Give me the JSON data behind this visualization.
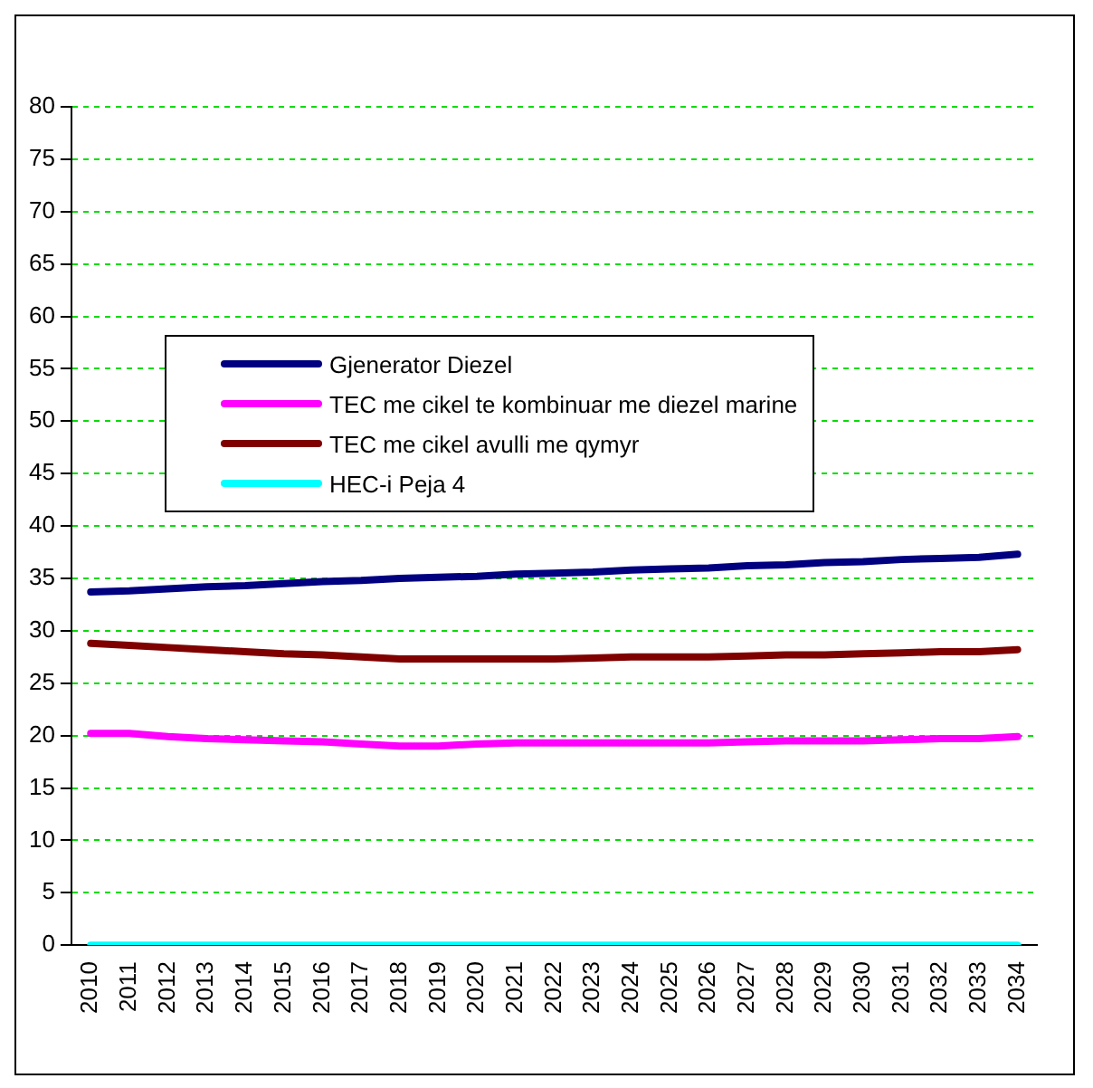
{
  "chart_data": {
    "type": "line",
    "categories": [
      "2010",
      "2011",
      "2012",
      "2013",
      "2014",
      "2015",
      "2016",
      "2017",
      "2018",
      "2019",
      "2020",
      "2021",
      "2022",
      "2023",
      "2024",
      "2025",
      "2026",
      "2027",
      "2028",
      "2029",
      "2030",
      "2031",
      "2032",
      "2033",
      "2034"
    ],
    "series": [
      {
        "name": "Gjenerator Diezel",
        "color": "#000080",
        "values": [
          33.7,
          33.8,
          34.0,
          34.2,
          34.3,
          34.5,
          34.7,
          34.8,
          35.0,
          35.1,
          35.2,
          35.4,
          35.5,
          35.6,
          35.8,
          35.9,
          36.0,
          36.2,
          36.3,
          36.5,
          36.6,
          36.8,
          36.9,
          37.0,
          37.3
        ]
      },
      {
        "name": "TEC me cikel te kombinuar me diezel marine",
        "color": "#ff00ff",
        "values": [
          20.2,
          20.2,
          19.9,
          19.7,
          19.6,
          19.5,
          19.4,
          19.2,
          19.0,
          19.0,
          19.2,
          19.3,
          19.3,
          19.3,
          19.3,
          19.3,
          19.3,
          19.4,
          19.5,
          19.5,
          19.5,
          19.6,
          19.7,
          19.7,
          19.9
        ]
      },
      {
        "name": "TEC me cikel avulli me qymyr",
        "color": "#800000",
        "values": [
          28.8,
          28.6,
          28.4,
          28.2,
          28.0,
          27.8,
          27.7,
          27.5,
          27.3,
          27.3,
          27.3,
          27.3,
          27.3,
          27.4,
          27.5,
          27.5,
          27.5,
          27.6,
          27.7,
          27.7,
          27.8,
          27.9,
          28.0,
          28.0,
          28.2
        ]
      },
      {
        "name": "HEC-i Peja 4",
        "color": "#00ffff",
        "values": [
          0,
          0,
          0,
          0,
          0,
          0,
          0,
          0,
          0,
          0,
          0,
          0,
          0,
          0,
          0,
          0,
          0,
          0,
          0,
          0,
          0,
          0,
          0,
          0,
          0
        ]
      }
    ],
    "ylim": [
      0,
      80
    ],
    "yticks": [
      0,
      5,
      10,
      15,
      20,
      25,
      30,
      35,
      40,
      45,
      50,
      55,
      60,
      65,
      70,
      75,
      80
    ],
    "grid": "y",
    "legend": "top left",
    "marker": "none",
    "line_style": "solid"
  }
}
